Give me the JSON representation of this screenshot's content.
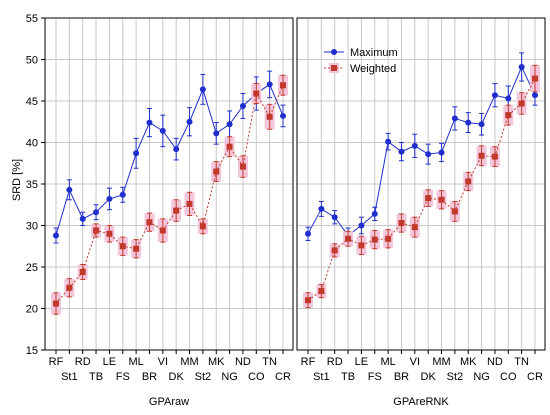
{
  "chart_data": {
    "type": "line",
    "ylabel": "SRD [%]",
    "ylim": [
      15,
      55
    ],
    "yticks": [
      15,
      20,
      25,
      30,
      35,
      40,
      45,
      50,
      55
    ],
    "categories": [
      "RF",
      "St1",
      "RD",
      "TB",
      "LE",
      "FS",
      "ML",
      "BR",
      "VI",
      "DK",
      "MM",
      "St2",
      "MK",
      "NG",
      "ND",
      "CO",
      "TN",
      "CR"
    ],
    "grid": true,
    "legend_position": "top",
    "colors": {
      "maximum": "#1f2ecc",
      "weighted": "#c0392b",
      "band": "#f4c6dc",
      "grid": "#c8c8c8"
    },
    "panels": [
      {
        "xlabel": "GPAraw",
        "series": [
          {
            "name": "Maximum",
            "values": [
              28.8,
              34.3,
              30.8,
              31.6,
              33.2,
              33.7,
              38.7,
              42.4,
              41.4,
              39.2,
              42.5,
              46.4,
              41.1,
              42.2,
              44.4,
              45.9,
              47.0,
              43.2
            ],
            "errors": [
              0.9,
              1.2,
              0.8,
              0.9,
              1.3,
              0.9,
              1.8,
              1.7,
              1.9,
              1.3,
              1.7,
              1.8,
              1.3,
              1.6,
              1.5,
              2.0,
              1.6,
              1.3
            ]
          },
          {
            "name": "Weighted",
            "values": [
              20.6,
              22.5,
              24.4,
              29.4,
              29.0,
              27.5,
              27.2,
              30.4,
              29.4,
              31.8,
              32.6,
              29.9,
              36.5,
              39.5,
              37.1,
              45.9,
              43.1,
              46.9
            ],
            "errors": [
              1.3,
              1.1,
              0.9,
              0.8,
              1.0,
              1.1,
              1.1,
              1.1,
              1.4,
              1.3,
              1.4,
              0.9,
              1.2,
              1.2,
              1.3,
              1.2,
              1.5,
              1.2
            ]
          }
        ]
      },
      {
        "xlabel": "GPAreRNK",
        "series": [
          {
            "name": "Maximum",
            "values": [
              29.0,
              32.0,
              31.0,
              28.8,
              30.0,
              31.4,
              40.1,
              38.9,
              39.6,
              38.6,
              38.8,
              42.9,
              42.4,
              42.2,
              45.7,
              45.3,
              49.1,
              45.7
            ],
            "errors": [
              0.8,
              0.9,
              0.8,
              0.9,
              1.0,
              0.8,
              1.0,
              1.1,
              1.4,
              1.2,
              1.1,
              1.4,
              1.2,
              1.3,
              1.4,
              1.5,
              1.7,
              1.2
            ]
          },
          {
            "name": "Weighted",
            "values": [
              21.0,
              22.1,
              27.0,
              28.4,
              27.6,
              28.3,
              28.4,
              30.3,
              29.8,
              33.3,
              33.1,
              31.7,
              35.3,
              38.4,
              38.3,
              43.3,
              44.7,
              47.7
            ],
            "errors": [
              0.9,
              0.8,
              0.8,
              0.9,
              1.1,
              1.1,
              1.1,
              1.1,
              1.2,
              1.0,
              1.1,
              1.2,
              1.1,
              1.2,
              1.2,
              1.2,
              1.3,
              1.6
            ]
          }
        ]
      }
    ]
  }
}
